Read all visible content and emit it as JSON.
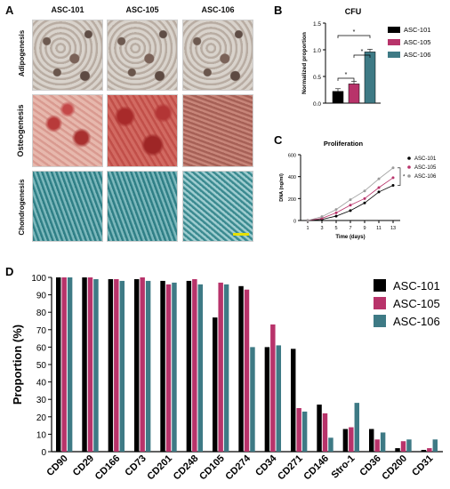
{
  "panel_a": {
    "letter": "A",
    "column_titles": [
      "ASC-101",
      "ASC-105",
      "ASC-106"
    ],
    "row_labels": [
      "Adipogenesis",
      "Osteogenesis",
      "Chondrogenesis"
    ]
  },
  "chart_data": [
    {
      "panel": "B",
      "type": "bar",
      "title": "CFU",
      "ylabel": "Normalized proportion",
      "xlabel": "",
      "ylim": [
        0,
        1.5
      ],
      "yticks": [
        "0.0",
        "0.5",
        "1.0",
        "1.5"
      ],
      "series": [
        {
          "name": "ASC-101",
          "value": 0.22,
          "color": "#000000"
        },
        {
          "name": "ASC-105",
          "value": 0.36,
          "color": "#b8336a"
        },
        {
          "name": "ASC-106",
          "value": 0.96,
          "color": "#3e7a85"
        }
      ],
      "significance": [
        "*",
        "*",
        "*"
      ],
      "legend_position": "right"
    },
    {
      "panel": "C",
      "type": "line",
      "title": "Proliferation",
      "xlabel": "Time (days)",
      "ylabel": "DNA (ng/ml)",
      "x": [
        1,
        3,
        5,
        7,
        9,
        11,
        13
      ],
      "xticks": [
        "1",
        "3",
        "5",
        "7",
        "9",
        "11",
        "13"
      ],
      "ylim": [
        0,
        600
      ],
      "yticks": [
        "0",
        "200",
        "400",
        "600"
      ],
      "series": [
        {
          "name": "ASC-101",
          "color": "#000000",
          "values": [
            0,
            10,
            40,
            90,
            160,
            260,
            320
          ]
        },
        {
          "name": "ASC-105",
          "color": "#b8336a",
          "values": [
            0,
            20,
            70,
            140,
            200,
            300,
            390
          ]
        },
        {
          "name": "ASC-106",
          "color": "#9a9a9a",
          "values": [
            0,
            35,
            100,
            190,
            270,
            380,
            480
          ]
        }
      ],
      "significance": [
        "*"
      ],
      "legend_position": "top-right"
    },
    {
      "panel": "D",
      "type": "bar",
      "title": "",
      "xlabel": "",
      "ylabel": "Proportion (%)",
      "ylim": [
        0,
        100
      ],
      "yticks": [
        "0",
        "10",
        "20",
        "30",
        "40",
        "50",
        "60",
        "70",
        "80",
        "90",
        "100"
      ],
      "categories": [
        "CD90",
        "CD29",
        "CD166",
        "CD73",
        "CD201",
        "CD248",
        "CD105",
        "CD274",
        "CD34",
        "CD271",
        "CD146",
        "Stro-1",
        "CD36",
        "CD200",
        "CD31"
      ],
      "series": [
        {
          "name": "ASC-101",
          "color": "#000000",
          "values": [
            100,
            100,
            99,
            99,
            98,
            98,
            77,
            95,
            60,
            59,
            27,
            13,
            13,
            2,
            1
          ]
        },
        {
          "name": "ASC-105",
          "color": "#b8336a",
          "values": [
            100,
            100,
            99,
            100,
            96,
            99,
            97,
            93,
            73,
            25,
            22,
            14,
            7,
            6,
            2
          ]
        },
        {
          "name": "ASC-106",
          "color": "#3e7a85",
          "values": [
            100,
            99,
            98,
            98,
            97,
            96,
            96,
            60,
            61,
            23,
            8,
            28,
            11,
            7,
            7
          ]
        }
      ],
      "legend_position": "top-right"
    }
  ]
}
